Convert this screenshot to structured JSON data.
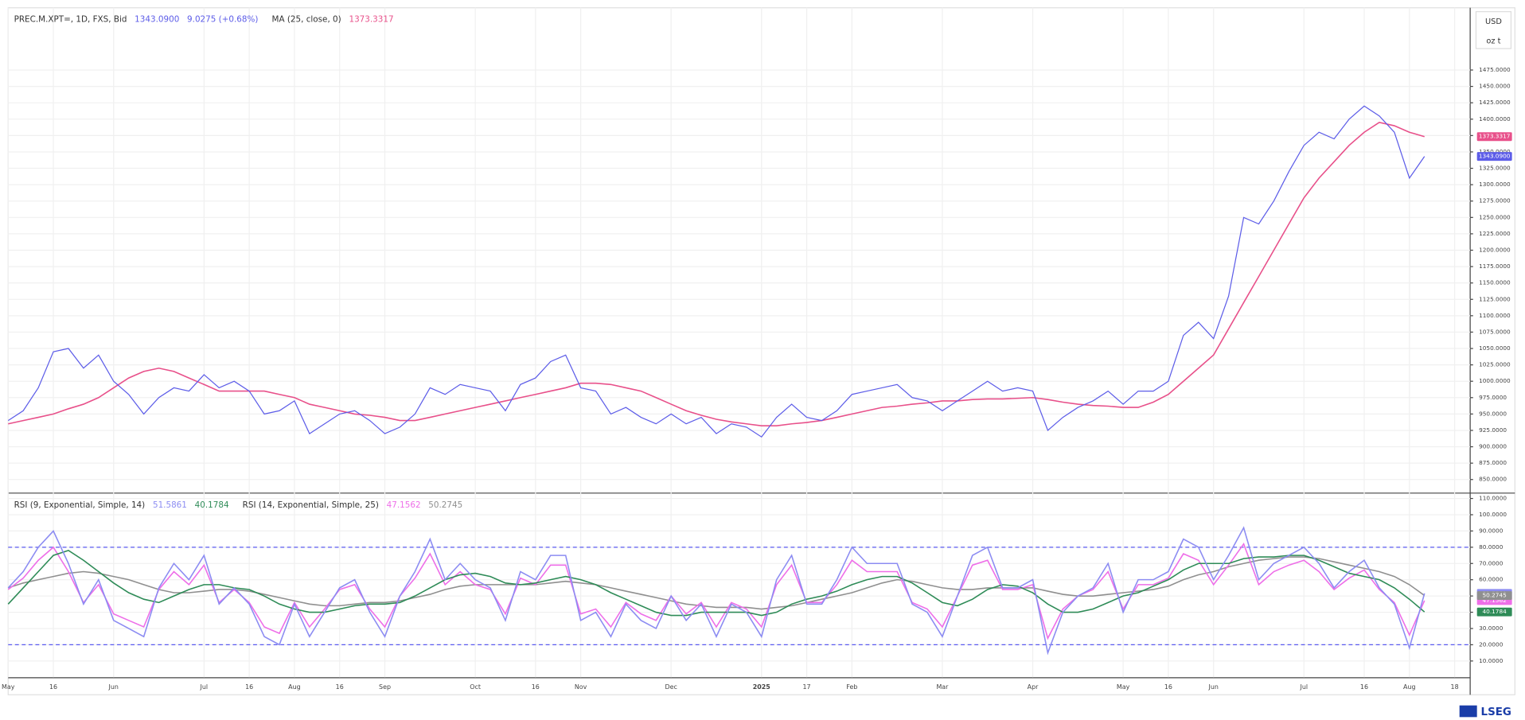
{
  "brand": "LSEG",
  "chart_data": [
    {
      "type": "line",
      "currency": "USD",
      "unit": "oz t",
      "categories": [
        "May",
        null,
        null,
        "16",
        null,
        null,
        null,
        "Jun",
        null,
        null,
        null,
        null,
        null,
        "Jul",
        null,
        null,
        "16",
        null,
        null,
        "Aug",
        null,
        null,
        "16",
        null,
        null,
        "Sep",
        null,
        null,
        null,
        null,
        null,
        "Oct",
        null,
        null,
        null,
        "16",
        null,
        null,
        "Nov",
        null,
        null,
        null,
        null,
        null,
        "Dec",
        null,
        null,
        null,
        null,
        null,
        "2025",
        null,
        null,
        "17",
        null,
        null,
        "Feb",
        null,
        null,
        null,
        null,
        null,
        "Mar",
        null,
        null,
        null,
        null,
        null,
        "Apr",
        null,
        null,
        null,
        null,
        null,
        "May",
        null,
        null,
        "16",
        null,
        null,
        "Jun",
        null,
        null,
        null,
        null,
        null,
        "Jul",
        null,
        null,
        null,
        "16",
        null,
        null,
        "Aug",
        null,
        null,
        "18"
      ],
      "series": [
        {
          "name": "PREC.M.XPT=, 1D, FXS, Bid",
          "color": "#5c5ce8",
          "last_label": "1343.0900",
          "change": "9.0275 (+0.68%)",
          "values": [
            940,
            955,
            990,
            1045,
            1050,
            1020,
            1040,
            1000,
            980,
            950,
            975,
            990,
            985,
            1010,
            990,
            1000,
            985,
            950,
            955,
            970,
            920,
            935,
            950,
            955,
            940,
            920,
            930,
            950,
            990,
            980,
            995,
            990,
            985,
            955,
            995,
            1005,
            1030,
            1040,
            990,
            985,
            950,
            960,
            945,
            935,
            950,
            935,
            945,
            920,
            935,
            930,
            915,
            945,
            965,
            945,
            940,
            955,
            980,
            985,
            990,
            995,
            975,
            970,
            955,
            970,
            985,
            1000,
            985,
            990,
            985,
            925,
            945,
            960,
            970,
            985,
            965,
            985,
            985,
            1000,
            1070,
            1090,
            1065,
            1130,
            1250,
            1240,
            1275,
            1320,
            1360,
            1380,
            1370,
            1400,
            1420,
            1405,
            1380,
            1310,
            1343.09,
            null,
            null
          ]
        },
        {
          "name": "MA (25, close, 0)",
          "color": "#e8508a",
          "last_label": "1373.3317",
          "values": [
            935,
            940,
            945,
            950,
            958,
            965,
            975,
            990,
            1005,
            1015,
            1020,
            1015,
            1005,
            995,
            985,
            985,
            985,
            985,
            980,
            975,
            965,
            960,
            955,
            950,
            948,
            945,
            940,
            940,
            945,
            950,
            955,
            960,
            965,
            970,
            975,
            980,
            985,
            990,
            997,
            997,
            995,
            990,
            985,
            975,
            965,
            955,
            948,
            942,
            938,
            935,
            932,
            932,
            935,
            937,
            940,
            945,
            950,
            955,
            960,
            962,
            965,
            967,
            970,
            970,
            972,
            973,
            973,
            974,
            975,
            972,
            968,
            965,
            963,
            962,
            960,
            960,
            968,
            980,
            1000,
            1020,
            1040,
            1080,
            1120,
            1160,
            1200,
            1240,
            1280,
            1310,
            1335,
            1360,
            1380,
            1395,
            1390,
            1380,
            1373.33,
            null,
            null
          ]
        }
      ],
      "ylim": [
        830,
        1570
      ],
      "yticks": [
        {
          "value": 850,
          "label": "850.0000"
        },
        {
          "value": 875,
          "label": "875.0000"
        },
        {
          "value": 900,
          "label": "900.0000"
        },
        {
          "value": 925,
          "label": "925.0000"
        },
        {
          "value": 950,
          "label": "950.0000"
        },
        {
          "value": 975,
          "label": "975.0000"
        },
        {
          "value": 1000,
          "label": "1000.0000"
        },
        {
          "value": 1025,
          "label": "1025.0000"
        },
        {
          "value": 1050,
          "label": "1050.0000"
        },
        {
          "value": 1075,
          "label": "1075.0000"
        },
        {
          "value": 1100,
          "label": "1100.0000"
        },
        {
          "value": 1125,
          "label": "1125.0000"
        },
        {
          "value": 1150,
          "label": "1150.0000"
        },
        {
          "value": 1175,
          "label": "1175.0000"
        },
        {
          "value": 1200,
          "label": "1200.0000"
        },
        {
          "value": 1225,
          "label": "1225.0000"
        },
        {
          "value": 1250,
          "label": "1250.0000"
        },
        {
          "value": 1275,
          "label": "1275.0000"
        },
        {
          "value": 1300,
          "label": "1300.0000"
        },
        {
          "value": 1325,
          "label": "1325.0000"
        },
        {
          "value": 1350,
          "label": "1350.0000"
        },
        {
          "value": 1375,
          "label": "1375.0000"
        },
        {
          "value": 1400,
          "label": "1400.0000"
        },
        {
          "value": 1425,
          "label": "1425.0000"
        },
        {
          "value": 1450,
          "label": "1450.0000"
        },
        {
          "value": 1475,
          "label": "1475.0000"
        }
      ],
      "grid": true
    },
    {
      "type": "line",
      "series": [
        {
          "name": "RSI (9, Exponential, Simple, 14)",
          "color": "#8c8cf2",
          "last_label": "51.5861",
          "values": [
            55,
            65,
            80,
            90,
            70,
            45,
            60,
            35,
            30,
            25,
            55,
            70,
            60,
            75,
            45,
            55,
            45,
            25,
            20,
            45,
            25,
            40,
            55,
            60,
            40,
            25,
            50,
            65,
            85,
            60,
            70,
            60,
            55,
            35,
            65,
            60,
            75,
            75,
            35,
            40,
            25,
            45,
            35,
            30,
            50,
            35,
            45,
            25,
            45,
            40,
            25,
            60,
            75,
            45,
            45,
            60,
            80,
            70,
            70,
            70,
            45,
            40,
            25,
            50,
            75,
            80,
            55,
            55,
            60,
            15,
            40,
            50,
            55,
            70,
            40,
            60,
            60,
            65,
            85,
            80,
            60,
            75,
            92,
            60,
            70,
            75,
            80,
            70,
            55,
            65,
            72,
            55,
            45,
            18,
            51.5861,
            null,
            null
          ]
        },
        {
          "color": "#2e8b57",
          "last_label": "40.1784",
          "values": [
            45,
            55,
            65,
            75,
            78,
            72,
            65,
            58,
            52,
            48,
            46,
            50,
            54,
            57,
            57,
            55,
            54,
            50,
            45,
            42,
            40,
            40,
            42,
            44,
            45,
            45,
            46,
            50,
            55,
            60,
            63,
            64,
            62,
            58,
            57,
            58,
            60,
            62,
            60,
            57,
            52,
            48,
            44,
            40,
            38,
            38,
            40,
            40,
            40,
            40,
            38,
            40,
            45,
            48,
            50,
            53,
            57,
            60,
            62,
            62,
            58,
            52,
            46,
            44,
            48,
            54,
            57,
            56,
            52,
            45,
            40,
            40,
            42,
            46,
            50,
            52,
            56,
            60,
            66,
            70,
            70,
            70,
            73,
            74,
            74,
            75,
            75,
            72,
            68,
            64,
            62,
            60,
            55,
            48,
            40.1784,
            null,
            null
          ]
        },
        {
          "name": "RSI (14, Exponential, Simple, 25)",
          "color": "#ee6ee8",
          "last_label": "47.1562",
          "values": [
            54,
            61,
            72,
            80,
            65,
            46,
            57,
            39,
            35,
            31,
            54,
            65,
            57,
            69,
            46,
            54,
            46,
            31,
            27,
            46,
            31,
            42,
            54,
            57,
            42,
            31,
            50,
            61,
            76,
            57,
            65,
            57,
            54,
            39,
            61,
            57,
            69,
            69,
            39,
            42,
            31,
            46,
            39,
            35,
            50,
            39,
            46,
            31,
            46,
            42,
            31,
            57,
            69,
            46,
            46,
            57,
            72,
            65,
            65,
            65,
            46,
            42,
            31,
            50,
            69,
            72,
            54,
            54,
            57,
            24,
            42,
            50,
            54,
            65,
            42,
            57,
            57,
            61,
            76,
            72,
            57,
            69,
            82,
            57,
            65,
            69,
            72,
            65,
            54,
            61,
            66,
            54,
            46,
            26,
            47.1562,
            null,
            null
          ]
        },
        {
          "color": "#8f8f8f",
          "last_label": "50.2745",
          "values": [
            55,
            58,
            60,
            62,
            64,
            65,
            64,
            62,
            60,
            57,
            54,
            52,
            52,
            53,
            54,
            54,
            53,
            51,
            49,
            47,
            45,
            44,
            44,
            45,
            46,
            46,
            47,
            49,
            51,
            54,
            56,
            57,
            57,
            57,
            57,
            57,
            58,
            59,
            58,
            57,
            55,
            53,
            51,
            49,
            47,
            45,
            44,
            43,
            43,
            43,
            42,
            43,
            44,
            46,
            48,
            50,
            52,
            55,
            58,
            60,
            59,
            57,
            55,
            54,
            54,
            55,
            55,
            55,
            55,
            53,
            51,
            50,
            50,
            51,
            52,
            53,
            54,
            56,
            60,
            63,
            65,
            68,
            70,
            72,
            73,
            74,
            74,
            73,
            71,
            69,
            67,
            65,
            62,
            57,
            50.2745,
            null,
            null
          ]
        }
      ],
      "ylim": [
        0,
        113
      ],
      "yticks": [
        {
          "value": 10,
          "label": "10.0000"
        },
        {
          "value": 20,
          "label": "20.0000"
        },
        {
          "value": 30,
          "label": "30.0000"
        },
        {
          "value": 40,
          "label": "40.0000"
        },
        {
          "value": 50,
          "label": "50.0000"
        },
        {
          "value": 60,
          "label": "60.0000"
        },
        {
          "value": 70,
          "label": "70.0000"
        },
        {
          "value": 80,
          "label": "80.0000"
        },
        {
          "value": 90,
          "label": "90.0000"
        },
        {
          "value": 100,
          "label": "100.0000"
        },
        {
          "value": 110,
          "label": "110.0000"
        }
      ],
      "hlines": [
        80,
        20
      ],
      "grid": true
    }
  ]
}
